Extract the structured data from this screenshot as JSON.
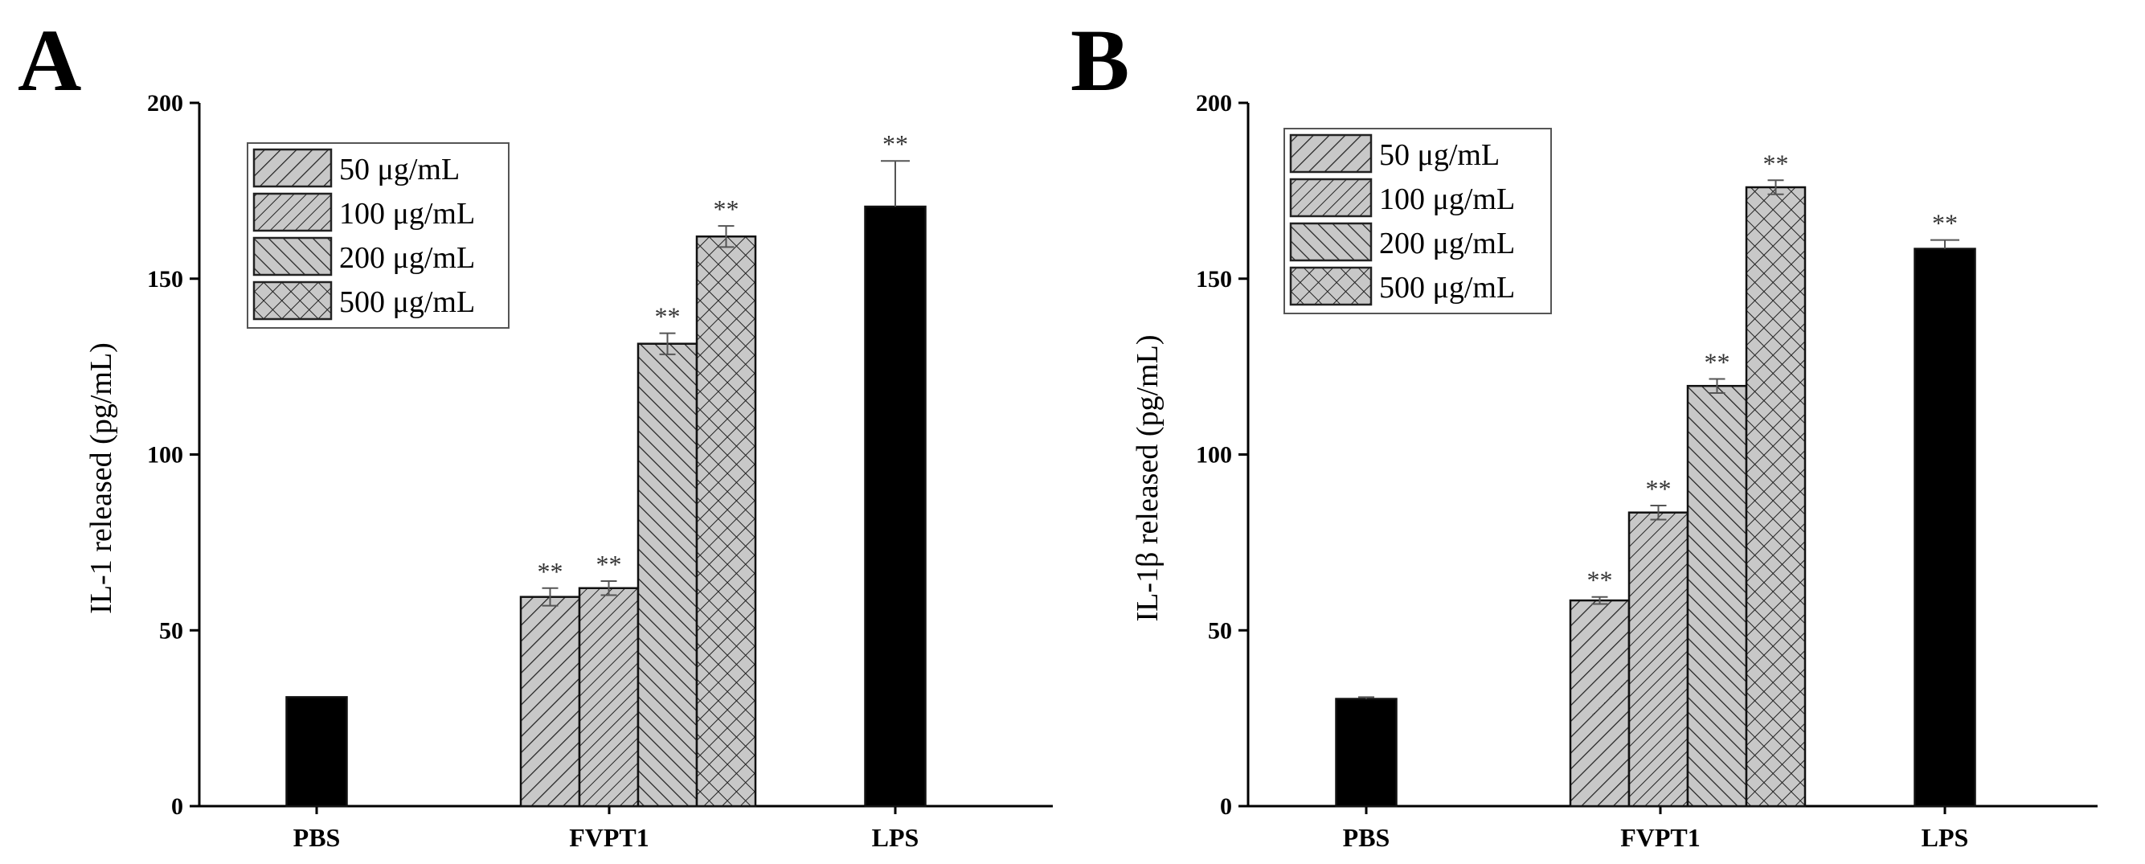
{
  "figure": {
    "panels": [
      "A",
      "B"
    ]
  },
  "legend": {
    "entries": [
      "50 μg/mL",
      "100 μg/mL",
      "200 μg/mL",
      "500 μg/mL"
    ],
    "patterns": [
      "hatch-ne",
      "hatch-ne-dense",
      "hatch-nw",
      "crosshatch"
    ]
  },
  "colors": {
    "control_bar": "#000000",
    "hatch_fill": "#c8c8c8",
    "hatch_line": "#222222",
    "axis": "#000000"
  },
  "chart_data": [
    {
      "panel": "A",
      "type": "bar",
      "title": "",
      "xlabel": "",
      "ylabel": "IL-1 released  (pg/mL)",
      "ylim": [
        0,
        200
      ],
      "yticks": [
        0,
        50,
        100,
        150,
        200
      ],
      "categories": [
        "PBS",
        "FVPT1",
        "LPS"
      ],
      "bars": [
        {
          "category": "PBS",
          "series": "control",
          "value": 31,
          "error": 0,
          "sig": ""
        },
        {
          "category": "FVPT1",
          "series": "50 μg/mL",
          "value": 59.5,
          "error": 2.5,
          "sig": "**"
        },
        {
          "category": "FVPT1",
          "series": "100 μg/mL",
          "value": 62,
          "error": 2,
          "sig": "**"
        },
        {
          "category": "FVPT1",
          "series": "200 μg/mL",
          "value": 131.5,
          "error": 3,
          "sig": "**"
        },
        {
          "category": "FVPT1",
          "series": "500 μg/mL",
          "value": 162,
          "error": 3,
          "sig": "**"
        },
        {
          "category": "LPS",
          "series": "control",
          "value": 170.5,
          "error": 13,
          "sig": "**"
        }
      ]
    },
    {
      "panel": "B",
      "type": "bar",
      "title": "",
      "xlabel": "",
      "ylabel": "IL-1β released  (pg/mL)",
      "ylim": [
        0,
        200
      ],
      "yticks": [
        0,
        50,
        100,
        150,
        200
      ],
      "categories": [
        "PBS",
        "FVPT1",
        "LPS"
      ],
      "bars": [
        {
          "category": "PBS",
          "series": "control",
          "value": 30.5,
          "error": 0.5,
          "sig": ""
        },
        {
          "category": "FVPT1",
          "series": "50 μg/mL",
          "value": 58.5,
          "error": 1,
          "sig": "**"
        },
        {
          "category": "FVPT1",
          "series": "100 μg/mL",
          "value": 83.5,
          "error": 2,
          "sig": "**"
        },
        {
          "category": "FVPT1",
          "series": "200 μg/mL",
          "value": 119.5,
          "error": 2,
          "sig": "**"
        },
        {
          "category": "FVPT1",
          "series": "500 μg/mL",
          "value": 176,
          "error": 2,
          "sig": "**"
        },
        {
          "category": "LPS",
          "series": "control",
          "value": 158.5,
          "error": 2.5,
          "sig": "**"
        }
      ]
    }
  ]
}
